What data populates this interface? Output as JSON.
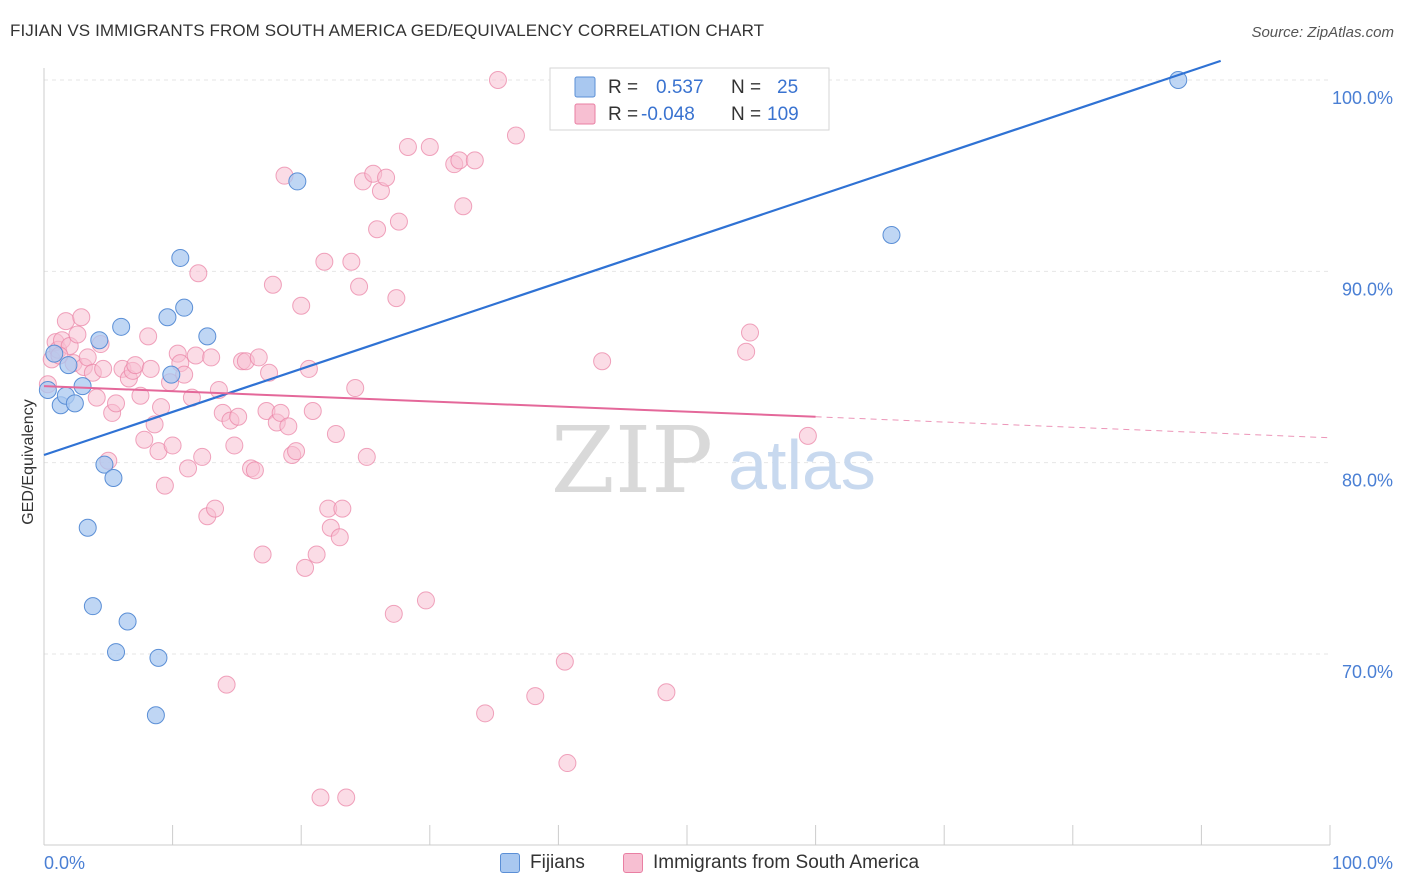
{
  "header": {
    "title": "FIJIAN VS IMMIGRANTS FROM SOUTH AMERICA GED/EQUIVALENCY CORRELATION CHART",
    "source": "Source: ZipAtlas.com"
  },
  "watermark": {
    "zip": "ZIP",
    "atlas": "atlas"
  },
  "colors": {
    "blue_fill": "#a9c8f0",
    "blue_stroke": "#5b8fd6",
    "blue_line": "#2f72d4",
    "pink_fill": "#f7bfd2",
    "pink_stroke": "#e97fa3",
    "pink_line": "#e4689a",
    "value_text": "#3a73d0"
  },
  "legend_box": {
    "rows": [
      {
        "r_label": "R =",
        "r_value": "0.537",
        "n_label": "N =",
        "n_value": "25"
      },
      {
        "r_label": "R =",
        "r_value": "-0.048",
        "n_label": "N =",
        "n_value": "109"
      }
    ]
  },
  "chart_data": {
    "type": "scatter",
    "title": "FIJIAN VS IMMIGRANTS FROM SOUTH AMERICA GED/EQUIVALENCY CORRELATION CHART",
    "xlabel": "",
    "ylabel": "GED/Equivalency",
    "xlim": [
      0,
      100
    ],
    "ylim": [
      60,
      102
    ],
    "x_tick_labels": [
      "0.0%",
      "100.0%"
    ],
    "y_ticks": [
      70,
      80,
      90,
      100
    ],
    "y_tick_labels": [
      "70.0%",
      "80.0%",
      "90.0%",
      "100.0%"
    ],
    "grid": true,
    "legend_position": "bottom",
    "series": [
      {
        "name": "Fijians",
        "r": 0.537,
        "n": 25,
        "trend": {
          "x0": 0,
          "y0": 80.4,
          "x1": 91.5,
          "y1": 101.0
        },
        "points": [
          [
            0.3,
            83.8
          ],
          [
            0.8,
            85.7
          ],
          [
            1.3,
            83.0
          ],
          [
            1.7,
            83.5
          ],
          [
            1.9,
            85.1
          ],
          [
            2.4,
            83.1
          ],
          [
            3.0,
            84.0
          ],
          [
            3.4,
            76.6
          ],
          [
            3.8,
            72.5
          ],
          [
            4.3,
            86.4
          ],
          [
            4.7,
            79.9
          ],
          [
            5.4,
            79.2
          ],
          [
            5.6,
            70.1
          ],
          [
            6.0,
            87.1
          ],
          [
            6.5,
            71.7
          ],
          [
            8.7,
            66.8
          ],
          [
            8.9,
            69.8
          ],
          [
            9.6,
            87.6
          ],
          [
            9.9,
            84.6
          ],
          [
            10.6,
            90.7
          ],
          [
            10.9,
            88.1
          ],
          [
            12.7,
            86.6
          ],
          [
            19.7,
            94.7
          ],
          [
            65.9,
            91.9
          ],
          [
            88.2,
            100.0
          ]
        ]
      },
      {
        "name": "Immigrants from South America",
        "r": -0.048,
        "n": 109,
        "trend": {
          "x0": 0,
          "y0": 84.0,
          "x1": 60.0,
          "y1": 82.4,
          "dash_x1": 100,
          "dash_y1": 81.3
        },
        "points": [
          [
            0.3,
            84.1
          ],
          [
            0.6,
            85.4
          ],
          [
            0.9,
            86.3
          ],
          [
            1.1,
            85.9
          ],
          [
            1.4,
            86.4
          ],
          [
            1.7,
            87.4
          ],
          [
            2.0,
            86.1
          ],
          [
            2.3,
            85.2
          ],
          [
            2.6,
            86.7
          ],
          [
            3.1,
            85.0
          ],
          [
            3.4,
            85.5
          ],
          [
            3.8,
            84.7
          ],
          [
            4.1,
            83.4
          ],
          [
            4.4,
            86.2
          ],
          [
            4.6,
            84.9
          ],
          [
            5.0,
            80.1
          ],
          [
            5.3,
            82.6
          ],
          [
            5.6,
            83.1
          ],
          [
            6.1,
            84.9
          ],
          [
            6.6,
            84.4
          ],
          [
            6.9,
            84.8
          ],
          [
            7.1,
            85.1
          ],
          [
            7.5,
            83.5
          ],
          [
            7.8,
            81.2
          ],
          [
            8.1,
            86.6
          ],
          [
            8.3,
            84.9
          ],
          [
            8.6,
            82.0
          ],
          [
            8.9,
            80.6
          ],
          [
            9.1,
            82.9
          ],
          [
            9.4,
            78.8
          ],
          [
            9.8,
            84.2
          ],
          [
            10.0,
            80.9
          ],
          [
            10.4,
            85.7
          ],
          [
            10.6,
            85.2
          ],
          [
            10.9,
            84.6
          ],
          [
            11.2,
            79.7
          ],
          [
            11.5,
            83.4
          ],
          [
            11.8,
            85.6
          ],
          [
            12.0,
            89.9
          ],
          [
            12.3,
            80.3
          ],
          [
            12.7,
            77.2
          ],
          [
            13.0,
            85.5
          ],
          [
            13.3,
            77.6
          ],
          [
            13.6,
            83.8
          ],
          [
            13.9,
            82.6
          ],
          [
            14.2,
            68.4
          ],
          [
            14.5,
            82.2
          ],
          [
            14.8,
            80.9
          ],
          [
            15.1,
            82.4
          ],
          [
            15.4,
            85.3
          ],
          [
            15.7,
            85.3
          ],
          [
            16.1,
            79.7
          ],
          [
            16.4,
            79.6
          ],
          [
            16.7,
            85.5
          ],
          [
            17.0,
            75.2
          ],
          [
            17.3,
            82.7
          ],
          [
            17.5,
            84.7
          ],
          [
            17.8,
            89.3
          ],
          [
            18.1,
            82.1
          ],
          [
            18.4,
            82.6
          ],
          [
            18.7,
            95.0
          ],
          [
            19.0,
            81.9
          ],
          [
            19.3,
            80.4
          ],
          [
            19.6,
            80.6
          ],
          [
            20.0,
            88.2
          ],
          [
            20.3,
            74.5
          ],
          [
            20.6,
            84.9
          ],
          [
            20.9,
            82.7
          ],
          [
            21.2,
            75.2
          ],
          [
            21.5,
            62.5
          ],
          [
            21.8,
            90.5
          ],
          [
            22.1,
            77.6
          ],
          [
            22.3,
            76.6
          ],
          [
            22.7,
            81.5
          ],
          [
            23.0,
            76.1
          ],
          [
            23.2,
            77.6
          ],
          [
            23.5,
            62.5
          ],
          [
            23.9,
            90.5
          ],
          [
            24.2,
            83.9
          ],
          [
            24.5,
            89.2
          ],
          [
            24.8,
            94.7
          ],
          [
            25.1,
            80.3
          ],
          [
            25.6,
            95.1
          ],
          [
            25.9,
            92.2
          ],
          [
            26.2,
            94.2
          ],
          [
            26.6,
            94.9
          ],
          [
            27.2,
            72.1
          ],
          [
            27.4,
            88.6
          ],
          [
            27.6,
            92.6
          ],
          [
            28.3,
            96.5
          ],
          [
            29.7,
            72.8
          ],
          [
            30.0,
            96.5
          ],
          [
            31.9,
            95.6
          ],
          [
            32.3,
            95.8
          ],
          [
            32.6,
            93.4
          ],
          [
            33.5,
            95.8
          ],
          [
            34.3,
            66.9
          ],
          [
            35.3,
            100.0
          ],
          [
            36.7,
            97.1
          ],
          [
            38.2,
            67.8
          ],
          [
            40.5,
            69.6
          ],
          [
            40.7,
            64.3
          ],
          [
            43.4,
            85.3
          ],
          [
            48.4,
            68.0
          ],
          [
            54.6,
            85.8
          ],
          [
            54.9,
            86.8
          ],
          [
            59.4,
            81.4
          ],
          [
            2.9,
            87.6
          ],
          [
            1.2,
            85.6
          ]
        ]
      }
    ]
  },
  "bottom_legend": {
    "items": [
      {
        "label": "Fijians"
      },
      {
        "label": "Immigrants from South America"
      }
    ]
  }
}
